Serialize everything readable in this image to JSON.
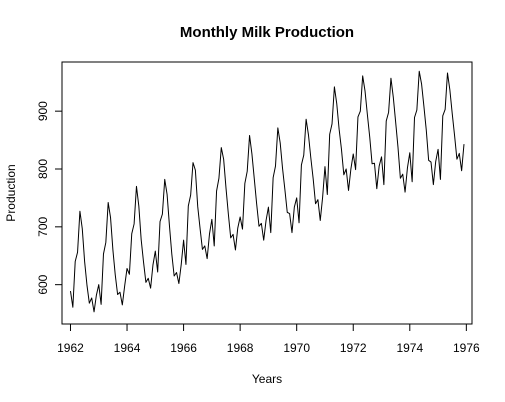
{
  "chart_data": {
    "type": "line",
    "title": "Monthly Milk Production",
    "xlabel": "Years",
    "ylabel": "Production",
    "xlim": [
      1961.7,
      1976.2
    ],
    "ylim": [
      532,
      985
    ],
    "x_ticks": [
      1962,
      1964,
      1966,
      1968,
      1970,
      1972,
      1974,
      1976
    ],
    "y_ticks": [
      600,
      700,
      800,
      900
    ],
    "grid": false,
    "start_year": 1962,
    "frequency": 12,
    "series": [
      {
        "values": [
          589,
          561,
          640,
          656,
          727,
          697,
          640,
          599,
          568,
          577,
          553,
          582,
          600,
          566,
          653,
          673,
          742,
          716,
          660,
          617,
          583,
          587,
          565,
          598,
          628,
          618,
          688,
          705,
          770,
          736,
          678,
          639,
          604,
          611,
          594,
          634,
          658,
          622,
          709,
          722,
          782,
          756,
          702,
          653,
          615,
          621,
          602,
          635,
          677,
          635,
          736,
          755,
          811,
          798,
          735,
          697,
          661,
          667,
          645,
          688,
          713,
          667,
          762,
          784,
          837,
          817,
          767,
          722,
          681,
          687,
          660,
          698,
          717,
          696,
          775,
          796,
          858,
          826,
          783,
          740,
          701,
          706,
          677,
          711,
          734,
          690,
          785,
          805,
          871,
          845,
          801,
          764,
          725,
          723,
          690,
          734,
          750,
          707,
          807,
          824,
          886,
          859,
          819,
          783,
          740,
          747,
          711,
          751,
          804,
          756,
          860,
          878,
          942,
          913,
          869,
          834,
          790,
          800,
          763,
          800,
          826,
          799,
          890,
          900,
          961,
          935,
          894,
          855,
          809,
          810,
          766,
          805,
          821,
          773,
          883,
          898,
          957,
          924,
          881,
          837,
          784,
          791,
          760,
          802,
          828,
          778,
          889,
          902,
          969,
          947,
          908,
          867,
          815,
          812,
          773,
          813,
          834,
          782,
          892,
          903,
          966,
          937,
          896,
          858,
          817,
          827,
          797,
          843
        ]
      }
    ]
  }
}
